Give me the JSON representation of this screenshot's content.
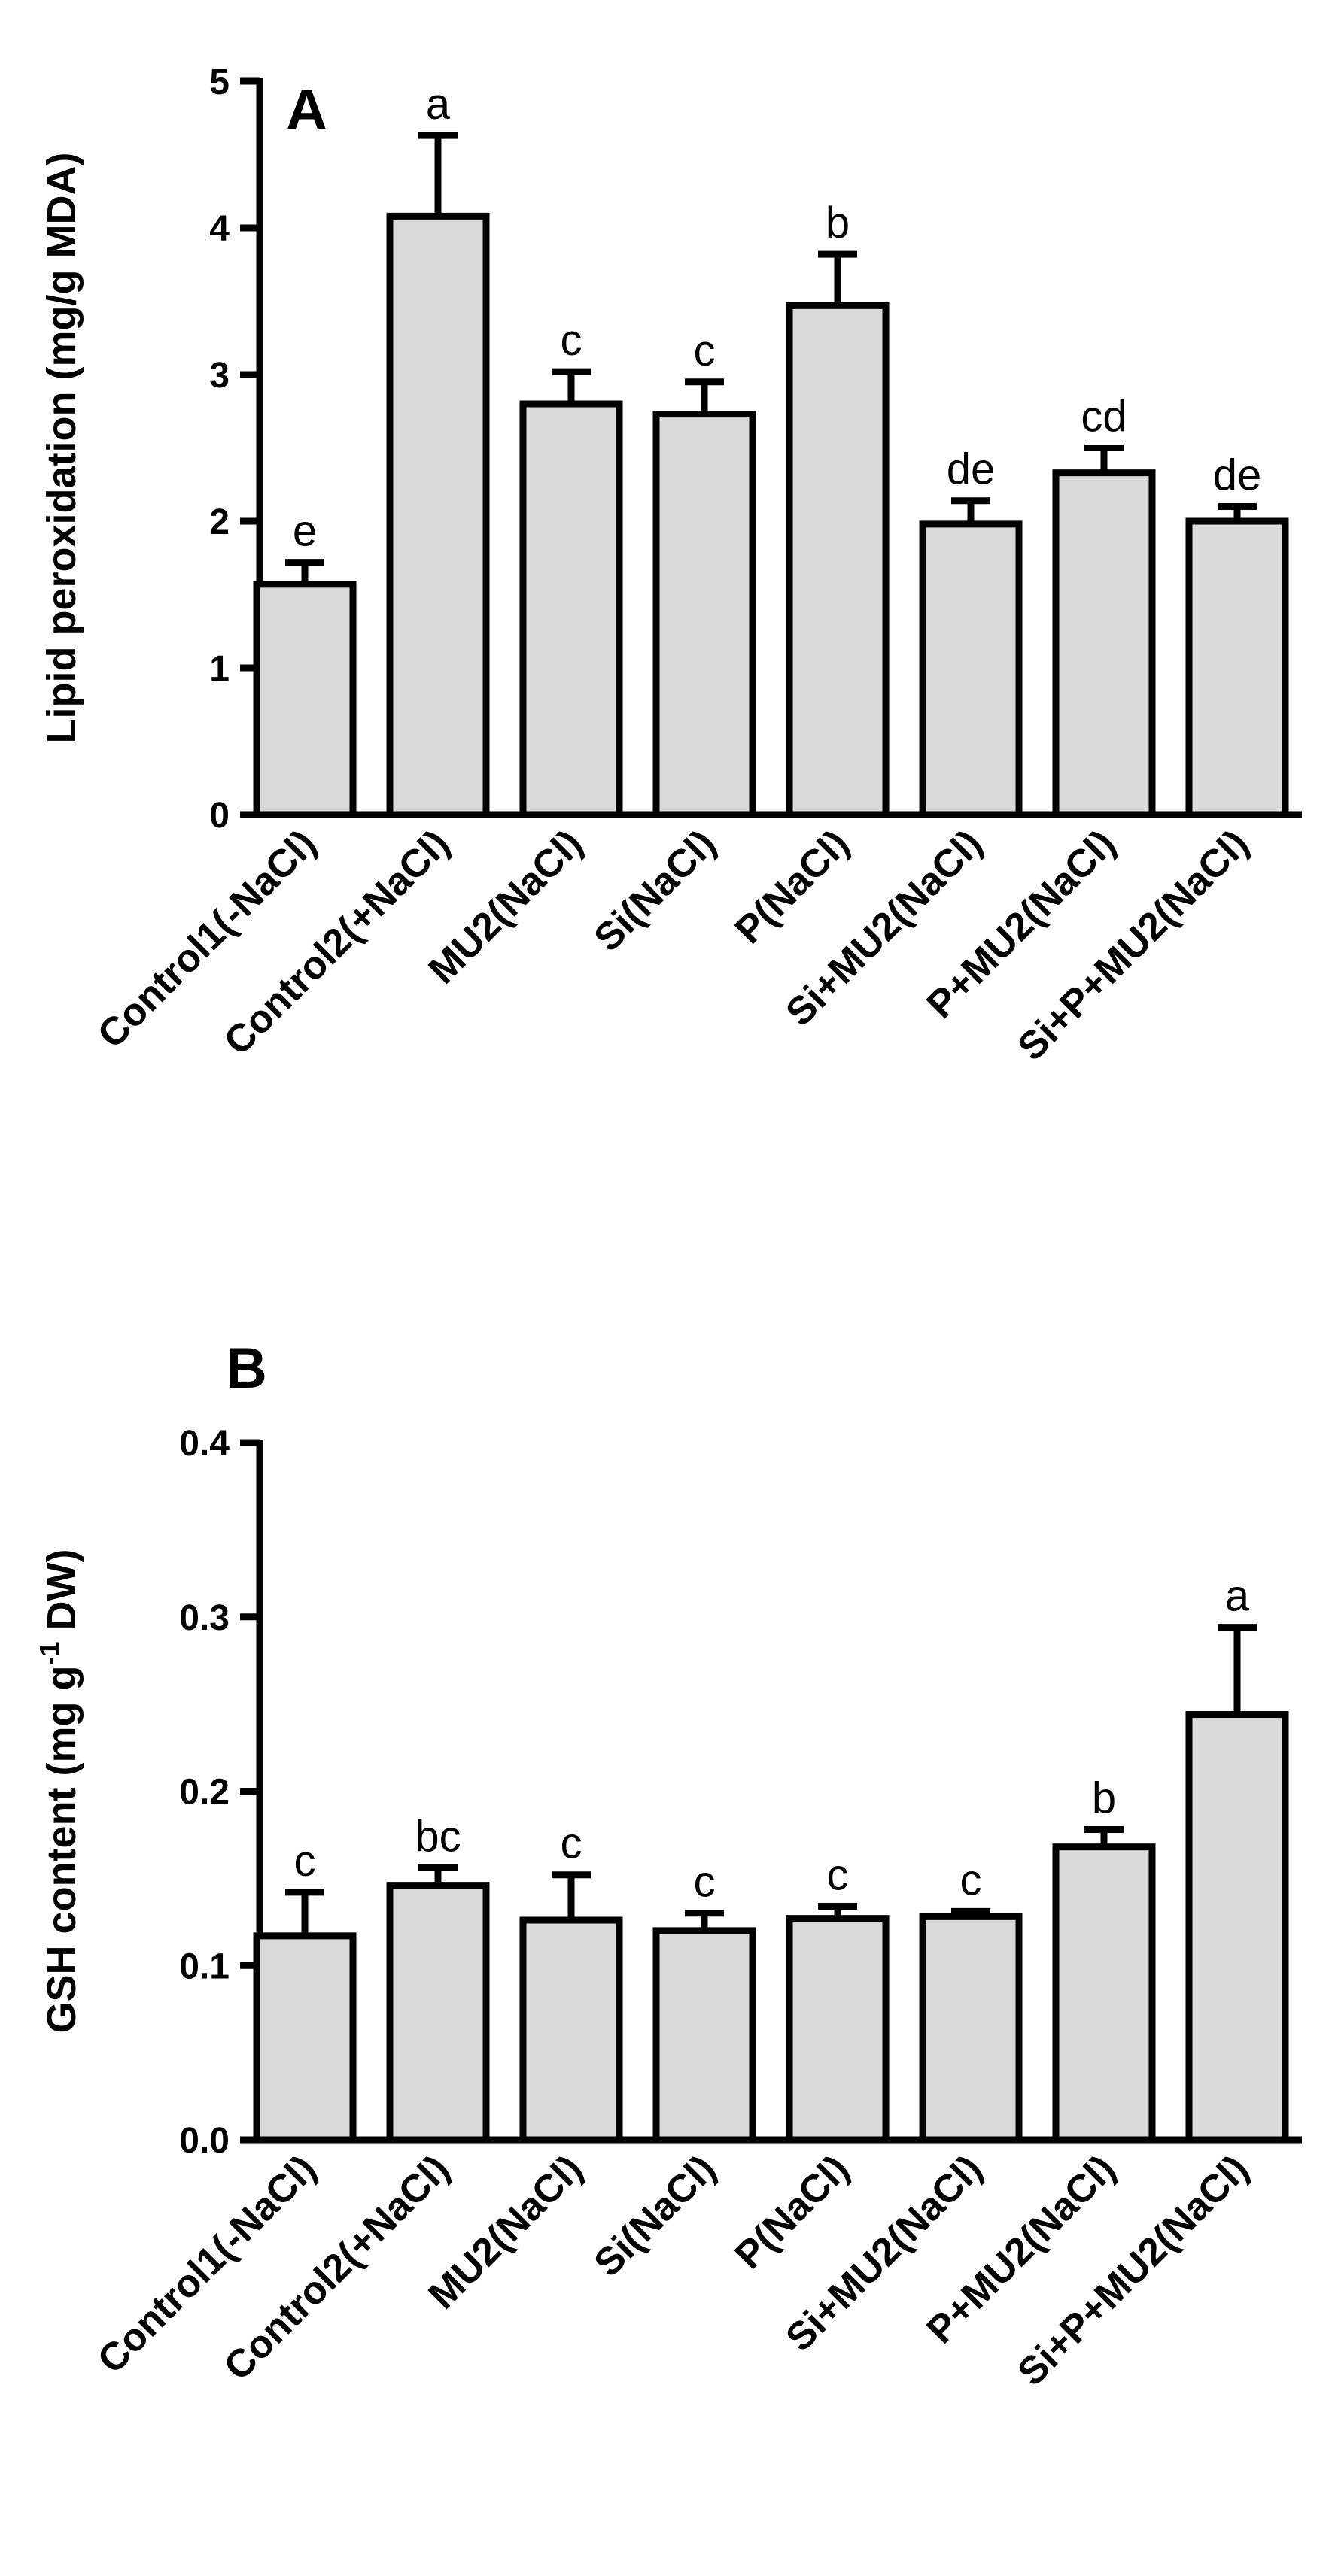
{
  "chart_data": [
    {
      "type": "bar",
      "panel": "A",
      "ylabel": "Lipid peroxidation (mg/g MDA)",
      "ylim": [
        0,
        5
      ],
      "yticks": [
        "0",
        "1",
        "2",
        "3",
        "4",
        "5"
      ],
      "categories": [
        "Control1(-NaCl)",
        "Control2(+NaCl)",
        "MU2(NaCl)",
        "Si(NaCl)",
        "P(NaCl)",
        "Si+MU2(NaCl)",
        "P+MU2(NaCl)",
        "Si+P+MU2(NaCl)"
      ],
      "values": [
        1.57,
        4.08,
        2.8,
        2.73,
        3.47,
        1.98,
        2.33,
        2.0
      ],
      "errors": [
        0.15,
        0.55,
        0.22,
        0.22,
        0.35,
        0.16,
        0.17,
        0.1
      ],
      "significance": [
        "e",
        "a",
        "c",
        "c",
        "b",
        "de",
        "cd",
        "de"
      ]
    },
    {
      "type": "bar",
      "panel": "B",
      "ylabel_main": "GSH content (mg g",
      "ylabel_sup": "-1",
      "ylabel_end": " DW)",
      "ylim": [
        0,
        0.4
      ],
      "yticks": [
        "0.0",
        "0.1",
        "0.2",
        "0.3",
        "0.4"
      ],
      "categories": [
        "Control1(-NaCl)",
        "Control2(+NaCl)",
        "MU2(NaCl)",
        "Si(NaCl)",
        "P(NaCl)",
        "Si+MU2(NaCl)",
        "P+MU2(NaCl)",
        "Si+P+MU2(NaCl)"
      ],
      "values": [
        0.117,
        0.146,
        0.126,
        0.12,
        0.127,
        0.128,
        0.168,
        0.244
      ],
      "errors": [
        0.025,
        0.01,
        0.026,
        0.01,
        0.007,
        0.003,
        0.01,
        0.05
      ],
      "significance": [
        "c",
        "bc",
        "c",
        "c",
        "c",
        "c",
        "b",
        "a"
      ]
    }
  ]
}
